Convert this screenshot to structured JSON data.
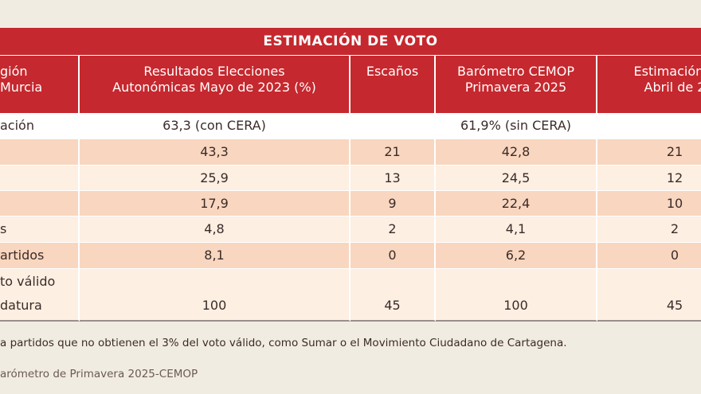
{
  "table": {
    "title": "ESTIMACIÓN DE VOTO",
    "header": [
      [
        "gión",
        "Murcia"
      ],
      [
        "Resultados Elecciones",
        "Autonómicas Mayo de 2023 (%)"
      ],
      [
        "Escaños"
      ],
      [
        "Barómetro CEMOP",
        "Primavera 2025"
      ],
      [
        "Estimación E",
        "Abril de 2"
      ]
    ],
    "rows": [
      [
        "ación",
        "63,3 (con CERA)",
        "",
        "61,9% (sin CERA)",
        ""
      ],
      [
        "",
        "43,3",
        "21",
        "42,8",
        "21"
      ],
      [
        "",
        "25,9",
        "13",
        "24,5",
        "12"
      ],
      [
        "",
        "17,9",
        "9",
        "22,4",
        "10"
      ],
      [
        "s",
        "4,8",
        "2",
        "4,1",
        "2"
      ],
      [
        "artidos",
        "8,1",
        "0",
        "6,2",
        "0"
      ],
      [
        [
          "to válido",
          "datura"
        ],
        "100",
        "45",
        "100",
        "45"
      ]
    ]
  },
  "footnote": "a partidos que no obtienen el 3% del voto válido, como Sumar o el Movimiento Ciudadano de Cartagena.",
  "source": "arómetro de Primavera 2025-CEMOP"
}
